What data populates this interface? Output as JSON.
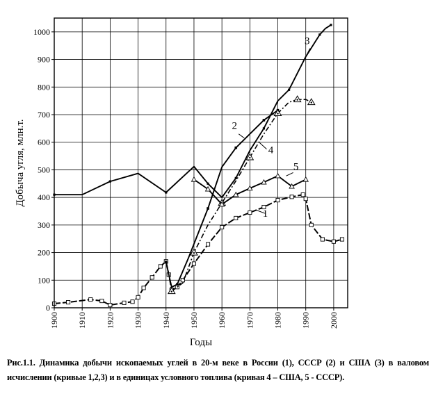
{
  "chart_data": {
    "type": "line",
    "xlabel": "Годы",
    "ylabel": "Добыча угля, млн.т.",
    "xlim": [
      1900,
      2005
    ],
    "ylim": [
      0,
      1050
    ],
    "x_ticks": [
      "1900",
      "1910",
      "1920",
      "1930",
      "1940",
      "1950",
      "1960",
      "1970",
      "1980",
      "1990",
      "2000"
    ],
    "y_ticks": [
      "0",
      "100",
      "200",
      "300",
      "400",
      "500",
      "600",
      "700",
      "800",
      "900",
      "1000"
    ],
    "grid": true,
    "series": [
      {
        "name": "1",
        "style": "long-dash",
        "marker": "circle-dot",
        "points": [
          [
            1900,
            15
          ],
          [
            1905,
            20
          ],
          [
            1913,
            30
          ],
          [
            1917,
            25
          ],
          [
            1920,
            10
          ],
          [
            1925,
            18
          ],
          [
            1928,
            22
          ],
          [
            1930,
            38
          ],
          [
            1932,
            72
          ],
          [
            1935,
            110
          ],
          [
            1938,
            150
          ],
          [
            1940,
            168
          ],
          [
            1941,
            120
          ],
          [
            1942,
            65
          ],
          [
            1944,
            75
          ],
          [
            1946,
            100
          ],
          [
            1950,
            160
          ],
          [
            1955,
            230
          ],
          [
            1960,
            292
          ],
          [
            1965,
            325
          ],
          [
            1970,
            345
          ],
          [
            1975,
            365
          ],
          [
            1980,
            390
          ],
          [
            1985,
            402
          ],
          [
            1989,
            410
          ],
          [
            1990,
            395
          ],
          [
            1992,
            300
          ],
          [
            1996,
            248
          ],
          [
            2000,
            240
          ],
          [
            2003,
            248
          ]
        ]
      },
      {
        "name": "2",
        "style": "solid",
        "marker": "square",
        "points": [
          [
            1940,
            166
          ],
          [
            1942,
            75
          ],
          [
            1944,
            85
          ],
          [
            1948,
            180
          ],
          [
            1955,
            360
          ],
          [
            1960,
            510
          ],
          [
            1965,
            580
          ],
          [
            1970,
            630
          ],
          [
            1975,
            680
          ],
          [
            1980,
            716
          ]
        ]
      },
      {
        "name": "3",
        "style": "solid",
        "marker": "dot",
        "points": [
          [
            1900,
            410
          ],
          [
            1910,
            410
          ],
          [
            1920,
            458
          ],
          [
            1930,
            487
          ],
          [
            1940,
            418
          ],
          [
            1950,
            512
          ],
          [
            1955,
            450
          ],
          [
            1960,
            400
          ],
          [
            1965,
            470
          ],
          [
            1970,
            570
          ],
          [
            1975,
            650
          ],
          [
            1980,
            750
          ],
          [
            1984,
            790
          ],
          [
            1990,
            910
          ],
          [
            1995,
            990
          ],
          [
            1997,
            1012
          ],
          [
            1999,
            1025
          ]
        ]
      },
      {
        "name": "4",
        "style": "dash-dot",
        "marker": "triangle",
        "points": [
          [
            1942,
            60
          ],
          [
            1946,
            90
          ],
          [
            1950,
            200
          ],
          [
            1955,
            300
          ],
          [
            1960,
            380
          ],
          [
            1965,
            460
          ],
          [
            1970,
            545
          ],
          [
            1975,
            630
          ],
          [
            1980,
            705
          ],
          [
            1984,
            745
          ],
          [
            1987,
            755
          ],
          [
            1990,
            755
          ],
          [
            1992,
            745
          ]
        ]
      },
      {
        "name": "5",
        "style": "solid",
        "marker": "triangle-small",
        "points": [
          [
            1950,
            465
          ],
          [
            1955,
            430
          ],
          [
            1960,
            375
          ],
          [
            1965,
            410
          ],
          [
            1970,
            433
          ],
          [
            1975,
            455
          ],
          [
            1980,
            478
          ],
          [
            1985,
            440
          ],
          [
            1990,
            465
          ]
        ]
      }
    ],
    "curve_labels": [
      "1",
      "2",
      "3",
      "4",
      "5"
    ]
  },
  "caption": "Рис.1.1. Динамика добычи ископаемых углей в 20-м веке в России (1), СССР (2) и США (3) в валовом исчислении (кривые 1,2,3) и в единицах условного топлива (кривая 4 – США, 5 - СССР)."
}
